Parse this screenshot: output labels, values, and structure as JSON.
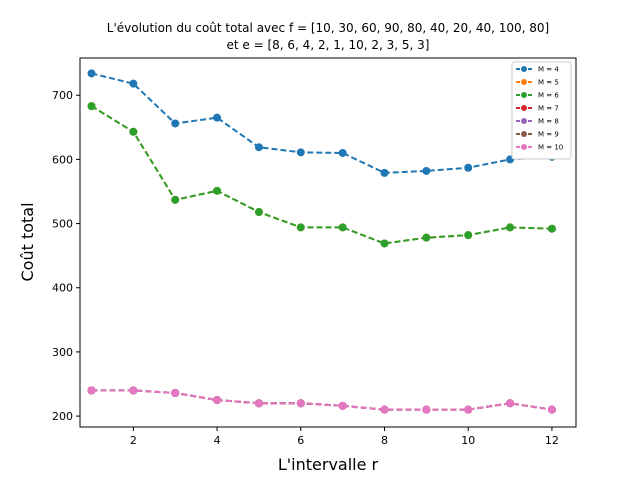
{
  "chart_data": {
    "type": "line",
    "title": "L'évolution du coût total avec f = [10, 30, 60, 90, 80, 40, 20, 40, 100, 80]",
    "subtitle": "et e = [8, 6, 4, 2, 1, 10, 2, 3, 5, 3]",
    "xlabel": "L'intervalle r",
    "ylabel": "Coût total",
    "xlim": [
      0.725,
      12.575
    ],
    "ylim": [
      183,
      758
    ],
    "xticks": [
      2,
      4,
      6,
      8,
      10,
      12
    ],
    "yticks": [
      200,
      300,
      400,
      500,
      600,
      700
    ],
    "grid": false,
    "legend_position": "top-right",
    "x": [
      1,
      2,
      3,
      4,
      5,
      6,
      7,
      8,
      9,
      10,
      11,
      12
    ],
    "series": [
      {
        "name": "M = 4",
        "color": "#1f77b4",
        "values": [
          734,
          718,
          656,
          665,
          619,
          611,
          610,
          579,
          582,
          587,
          600,
          604
        ]
      },
      {
        "name": "M = 5",
        "color": "#ff7f0e",
        "values": [
          683,
          643,
          537,
          551,
          518,
          494,
          494,
          469,
          478,
          482,
          494,
          492
        ]
      },
      {
        "name": "M = 6",
        "color": "#2ca02c",
        "values": [
          683,
          643,
          537,
          551,
          518,
          494,
          494,
          469,
          478,
          482,
          494,
          492
        ]
      },
      {
        "name": "M = 7",
        "color": "#d62728",
        "values": [
          240,
          240,
          236,
          225,
          220,
          220,
          216,
          210,
          210,
          210,
          220,
          210
        ]
      },
      {
        "name": "M = 8",
        "color": "#9467bd",
        "values": [
          240,
          240,
          236,
          225,
          220,
          220,
          216,
          210,
          210,
          210,
          220,
          210
        ]
      },
      {
        "name": "M = 9",
        "color": "#8c564b",
        "values": [
          240,
          240,
          236,
          225,
          220,
          220,
          216,
          210,
          210,
          210,
          220,
          210
        ]
      },
      {
        "name": "M = 10",
        "color": "#e377c2",
        "values": [
          240,
          240,
          236,
          225,
          220,
          220,
          216,
          210,
          210,
          210,
          220,
          210
        ]
      }
    ]
  }
}
